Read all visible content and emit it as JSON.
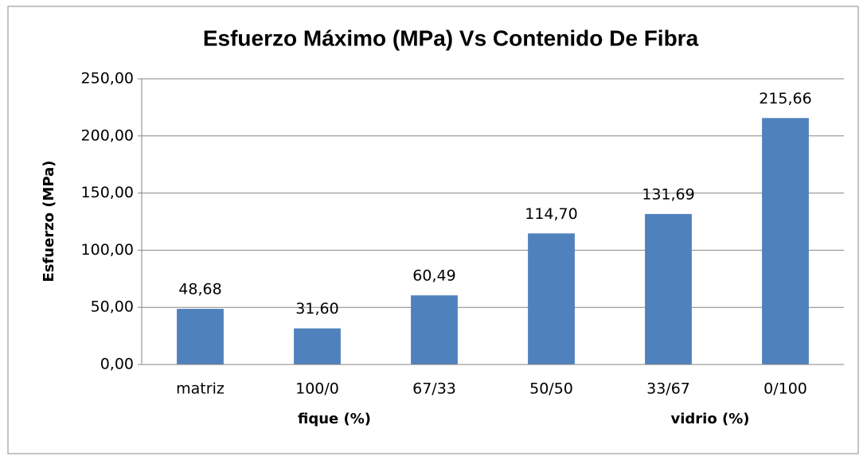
{
  "chart_data": {
    "type": "bar",
    "title": "Esfuerzo Máximo (MPa) Vs Contenido De Fibra",
    "y_label": "Esfuerzo (MPa)",
    "x_labels": [
      "fique (%)",
      "vidrio (%)"
    ],
    "categories": [
      "matriz",
      "100/0",
      "67/33",
      "50/50",
      "33/67",
      "0/100"
    ],
    "values": [
      48.68,
      31.6,
      60.49,
      114.7,
      131.69,
      215.66
    ],
    "value_labels": [
      "48,68",
      "31,60",
      "60,49",
      "114,70",
      "131,69",
      "215,66"
    ],
    "color": "#4f81bd",
    "ylim": [
      0,
      250
    ],
    "yticks": [
      {
        "value": 0,
        "label": "0,00"
      },
      {
        "value": 50,
        "label": "50,00"
      },
      {
        "value": 100,
        "label": "100,00"
      },
      {
        "value": 150,
        "label": "150,00"
      },
      {
        "value": 200,
        "label": "200,00"
      },
      {
        "value": 250,
        "label": "250,00"
      }
    ],
    "grid": true
  }
}
